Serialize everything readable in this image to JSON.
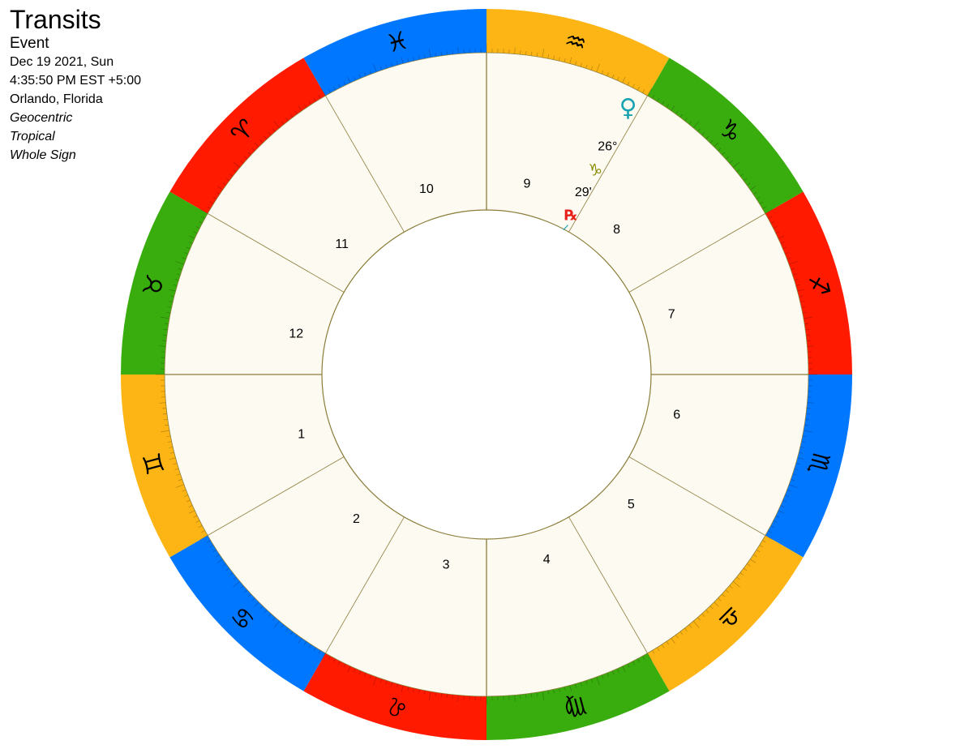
{
  "chart_info": {
    "title": "Transits",
    "type": "Event",
    "date": "Dec 19 2021, Sun",
    "time": "4:35:50 PM EST +5:00",
    "location": "Orlando, Florida",
    "zodiac_view": "Geocentric",
    "zodiac_type": "Tropical",
    "house_system": "Whole Sign"
  },
  "wheel": {
    "background": "#fdfaf2",
    "line_color": "#8b7d3a"
  },
  "signs": [
    {
      "name": "Aquarius",
      "glyph": "♒",
      "color": "#fcb514"
    },
    {
      "name": "Capricorn",
      "glyph": "♑",
      "color": "#3aad0e"
    },
    {
      "name": "Sagittarius",
      "glyph": "♐",
      "color": "#ff1a00"
    },
    {
      "name": "Scorpio",
      "glyph": "♏",
      "color": "#0077ff"
    },
    {
      "name": "Libra",
      "glyph": "♎",
      "color": "#fcb514"
    },
    {
      "name": "Virgo",
      "glyph": "♍",
      "color": "#3aad0e"
    },
    {
      "name": "Leo",
      "glyph": "♌",
      "color": "#ff1a00"
    },
    {
      "name": "Cancer",
      "glyph": "♋",
      "color": "#0077ff"
    },
    {
      "name": "Gemini",
      "glyph": "♊",
      "color": "#fcb514"
    },
    {
      "name": "Taurus",
      "glyph": "♉",
      "color": "#3aad0e"
    },
    {
      "name": "Aries",
      "glyph": "♈",
      "color": "#ff1a00"
    },
    {
      "name": "Pisces",
      "glyph": "♓",
      "color": "#0077ff"
    }
  ],
  "houses": [
    "9",
    "8",
    "7",
    "6",
    "5",
    "4",
    "3",
    "2",
    "1",
    "12",
    "11",
    "10"
  ],
  "planet": {
    "name": "Venus",
    "glyph": "♀",
    "color": "#1aa3b0",
    "sign_glyph": "♑",
    "sign_color": "#8b8b00",
    "degree": "26°",
    "minute": "29'",
    "retrograde": "℞",
    "retrograde_color": "#e8201a",
    "pointer_color": "#1aa3b0"
  }
}
